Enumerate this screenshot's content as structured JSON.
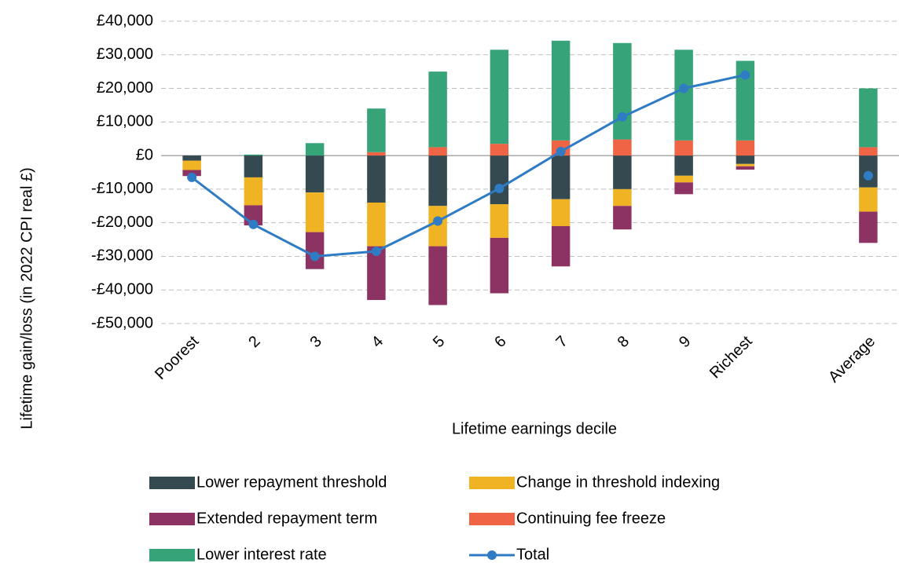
{
  "chart_data": {
    "type": "bar",
    "stacked": true,
    "xlabel": "Lifetime earnings decile",
    "ylabel": "Lifetime gain/loss (in 2022 CPI real £)",
    "categories": [
      "Poorest",
      "2",
      "3",
      "4",
      "5",
      "6",
      "7",
      "8",
      "9",
      "Richest",
      null,
      "Average"
    ],
    "series": [
      {
        "name": "Lower repayment threshold",
        "color": "#344a50",
        "values": [
          -1500,
          -6500,
          -11000,
          -14000,
          -15000,
          -14500,
          -13000,
          -10000,
          -6000,
          -2500,
          null,
          -9500
        ]
      },
      {
        "name": "Change in threshold indexing",
        "color": "#f0b323",
        "values": [
          -2800,
          -8300,
          -11800,
          -13000,
          -12000,
          -10000,
          -8000,
          -5000,
          -2000,
          -700,
          null,
          -7200
        ]
      },
      {
        "name": "Extended repayment term",
        "color": "#8d3363",
        "values": [
          -1800,
          -6000,
          -11000,
          -16000,
          -17500,
          -16500,
          -12000,
          -7000,
          -3500,
          -1000,
          null,
          -9300
        ]
      },
      {
        "name": "Continuing fee freeze",
        "color": "#ee6445",
        "values": [
          0,
          0,
          0,
          1000,
          2500,
          3500,
          4500,
          4800,
          4500,
          4500,
          null,
          2500
        ]
      },
      {
        "name": "Lower interest rate",
        "color": "#36a379",
        "values": [
          0,
          300,
          3700,
          13000,
          22500,
          28000,
          29700,
          28700,
          27000,
          23700,
          null,
          17500
        ]
      },
      {
        "name": "Total",
        "color": "#2f7bc4",
        "type": "line",
        "values": [
          -6500,
          -20500,
          -30000,
          -28500,
          -19500,
          -9800,
          1200,
          11500,
          20000,
          24000,
          null,
          -6000
        ]
      }
    ],
    "ylim": [
      -50000,
      40000
    ],
    "yticks": [
      {
        "value": -50000,
        "label": "-£50,000"
      },
      {
        "value": -40000,
        "label": "-£40,000"
      },
      {
        "value": -30000,
        "label": "-£30,000"
      },
      {
        "value": -20000,
        "label": "-£20,000"
      },
      {
        "value": -10000,
        "label": "-£10,000"
      },
      {
        "value": 0,
        "label": "£0"
      },
      {
        "value": 10000,
        "label": "£10,000"
      },
      {
        "value": 20000,
        "label": "£20,000"
      },
      {
        "value": 30000,
        "label": "£30,000"
      },
      {
        "value": 40000,
        "label": "£40,000"
      }
    ],
    "grid": true,
    "legend": "bottom"
  }
}
